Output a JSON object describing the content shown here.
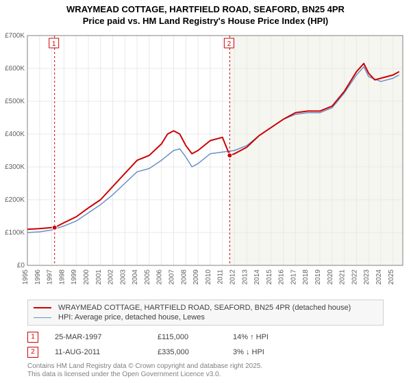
{
  "title": {
    "line1": "WRAYMEAD COTTAGE, HARTFIELD ROAD, SEAFORD, BN25 4PR",
    "line2": "Price paid vs. HM Land Registry's House Price Index (HPI)",
    "fontsize": 13,
    "color": "#000000"
  },
  "chart": {
    "type": "line",
    "background_color": "#ffffff",
    "plot_background_future": "#f6f6f0",
    "future_boundary_year": 2011.6,
    "grid_color": "#e8e8e8",
    "axis_color": "#808080",
    "xlim": [
      1995,
      2025.8
    ],
    "ylim": [
      0,
      700000
    ],
    "ytick_step": 100000,
    "yticks": [
      0,
      100000,
      200000,
      300000,
      400000,
      500000,
      600000,
      700000
    ],
    "ytick_labels": [
      "£0",
      "£100K",
      "£200K",
      "£300K",
      "£400K",
      "£500K",
      "£600K",
      "£700K"
    ],
    "xticks": [
      1995,
      1996,
      1997,
      1998,
      1999,
      2000,
      2001,
      2002,
      2003,
      2004,
      2005,
      2006,
      2007,
      2008,
      2009,
      2010,
      2011,
      2012,
      2013,
      2014,
      2015,
      2016,
      2017,
      2018,
      2019,
      2020,
      2021,
      2022,
      2023,
      2024,
      2025
    ],
    "xtick_labels": [
      "1995",
      "1996",
      "1997",
      "1998",
      "1999",
      "2000",
      "2001",
      "2002",
      "2003",
      "2004",
      "2005",
      "2006",
      "2007",
      "2008",
      "2009",
      "2010",
      "2011",
      "2012",
      "2013",
      "2014",
      "2015",
      "2016",
      "2017",
      "2018",
      "2019",
      "2020",
      "2021",
      "2022",
      "2023",
      "2024",
      "2025"
    ],
    "tick_fontsize": 10,
    "series": [
      {
        "name": "price_paid",
        "label": "WRAYMEAD COTTAGE, HARTFIELD ROAD, SEAFORD, BN25 4PR (detached house)",
        "color": "#cc0000",
        "line_width": 2,
        "x": [
          1995,
          1996,
          1997,
          1997.23,
          1998,
          1999,
          2000,
          2001,
          2002,
          2003,
          2004,
          2005,
          2006,
          2006.5,
          2007,
          2007.5,
          2008,
          2008.5,
          2009,
          2010,
          2011,
          2011.6,
          2012,
          2013,
          2014,
          2015,
          2016,
          2017,
          2018,
          2019,
          2020,
          2021,
          2022,
          2022.6,
          2023,
          2023.5,
          2024,
          2025,
          2025.5
        ],
        "y": [
          110000,
          112000,
          115000,
          115000,
          130000,
          148000,
          175000,
          200000,
          240000,
          280000,
          320000,
          335000,
          370000,
          400000,
          410000,
          400000,
          365000,
          340000,
          350000,
          380000,
          390000,
          335000,
          340000,
          360000,
          395000,
          420000,
          445000,
          465000,
          470000,
          470000,
          485000,
          530000,
          590000,
          615000,
          585000,
          565000,
          570000,
          580000,
          590000
        ]
      },
      {
        "name": "hpi",
        "label": "HPI: Average price, detached house, Lewes",
        "color": "#6a8fc7",
        "line_width": 1.5,
        "x": [
          1995,
          1996,
          1997,
          1998,
          1999,
          2000,
          2001,
          2002,
          2003,
          2004,
          2005,
          2006,
          2007,
          2007.5,
          2008,
          2008.5,
          2009,
          2010,
          2011,
          2012,
          2013,
          2014,
          2015,
          2016,
          2017,
          2018,
          2019,
          2020,
          2021,
          2022,
          2022.6,
          2023,
          2024,
          2025,
          2025.5
        ],
        "y": [
          100000,
          102000,
          108000,
          120000,
          135000,
          160000,
          185000,
          215000,
          250000,
          285000,
          295000,
          320000,
          350000,
          355000,
          330000,
          300000,
          310000,
          340000,
          345000,
          350000,
          365000,
          395000,
          420000,
          445000,
          460000,
          465000,
          465000,
          480000,
          525000,
          580000,
          605000,
          575000,
          560000,
          570000,
          580000
        ]
      }
    ],
    "markers": [
      {
        "id": "1",
        "year": 1997.23,
        "price": 115000,
        "date": "25-MAR-1997",
        "price_label": "£115,000",
        "change_label": "14% ↑ HPI",
        "badge_color": "#cc0000",
        "point_color": "#cc0000"
      },
      {
        "id": "2",
        "year": 2011.6,
        "price": 335000,
        "date": "11-AUG-2011",
        "price_label": "£335,000",
        "change_label": "3% ↓ HPI",
        "badge_color": "#cc0000",
        "point_color": "#cc0000"
      }
    ],
    "marker_line_color": "#cc0000",
    "marker_line_dash": "3,3"
  },
  "legend": {
    "background": "#f7f7f7",
    "border_color": "#d0d0d0",
    "fontsize": 11
  },
  "footnote": {
    "line1": "Contains HM Land Registry data © Crown copyright and database right 2025.",
    "line2": "This data is licensed under the Open Government Licence v3.0.",
    "color": "#808080",
    "fontsize": 10
  }
}
